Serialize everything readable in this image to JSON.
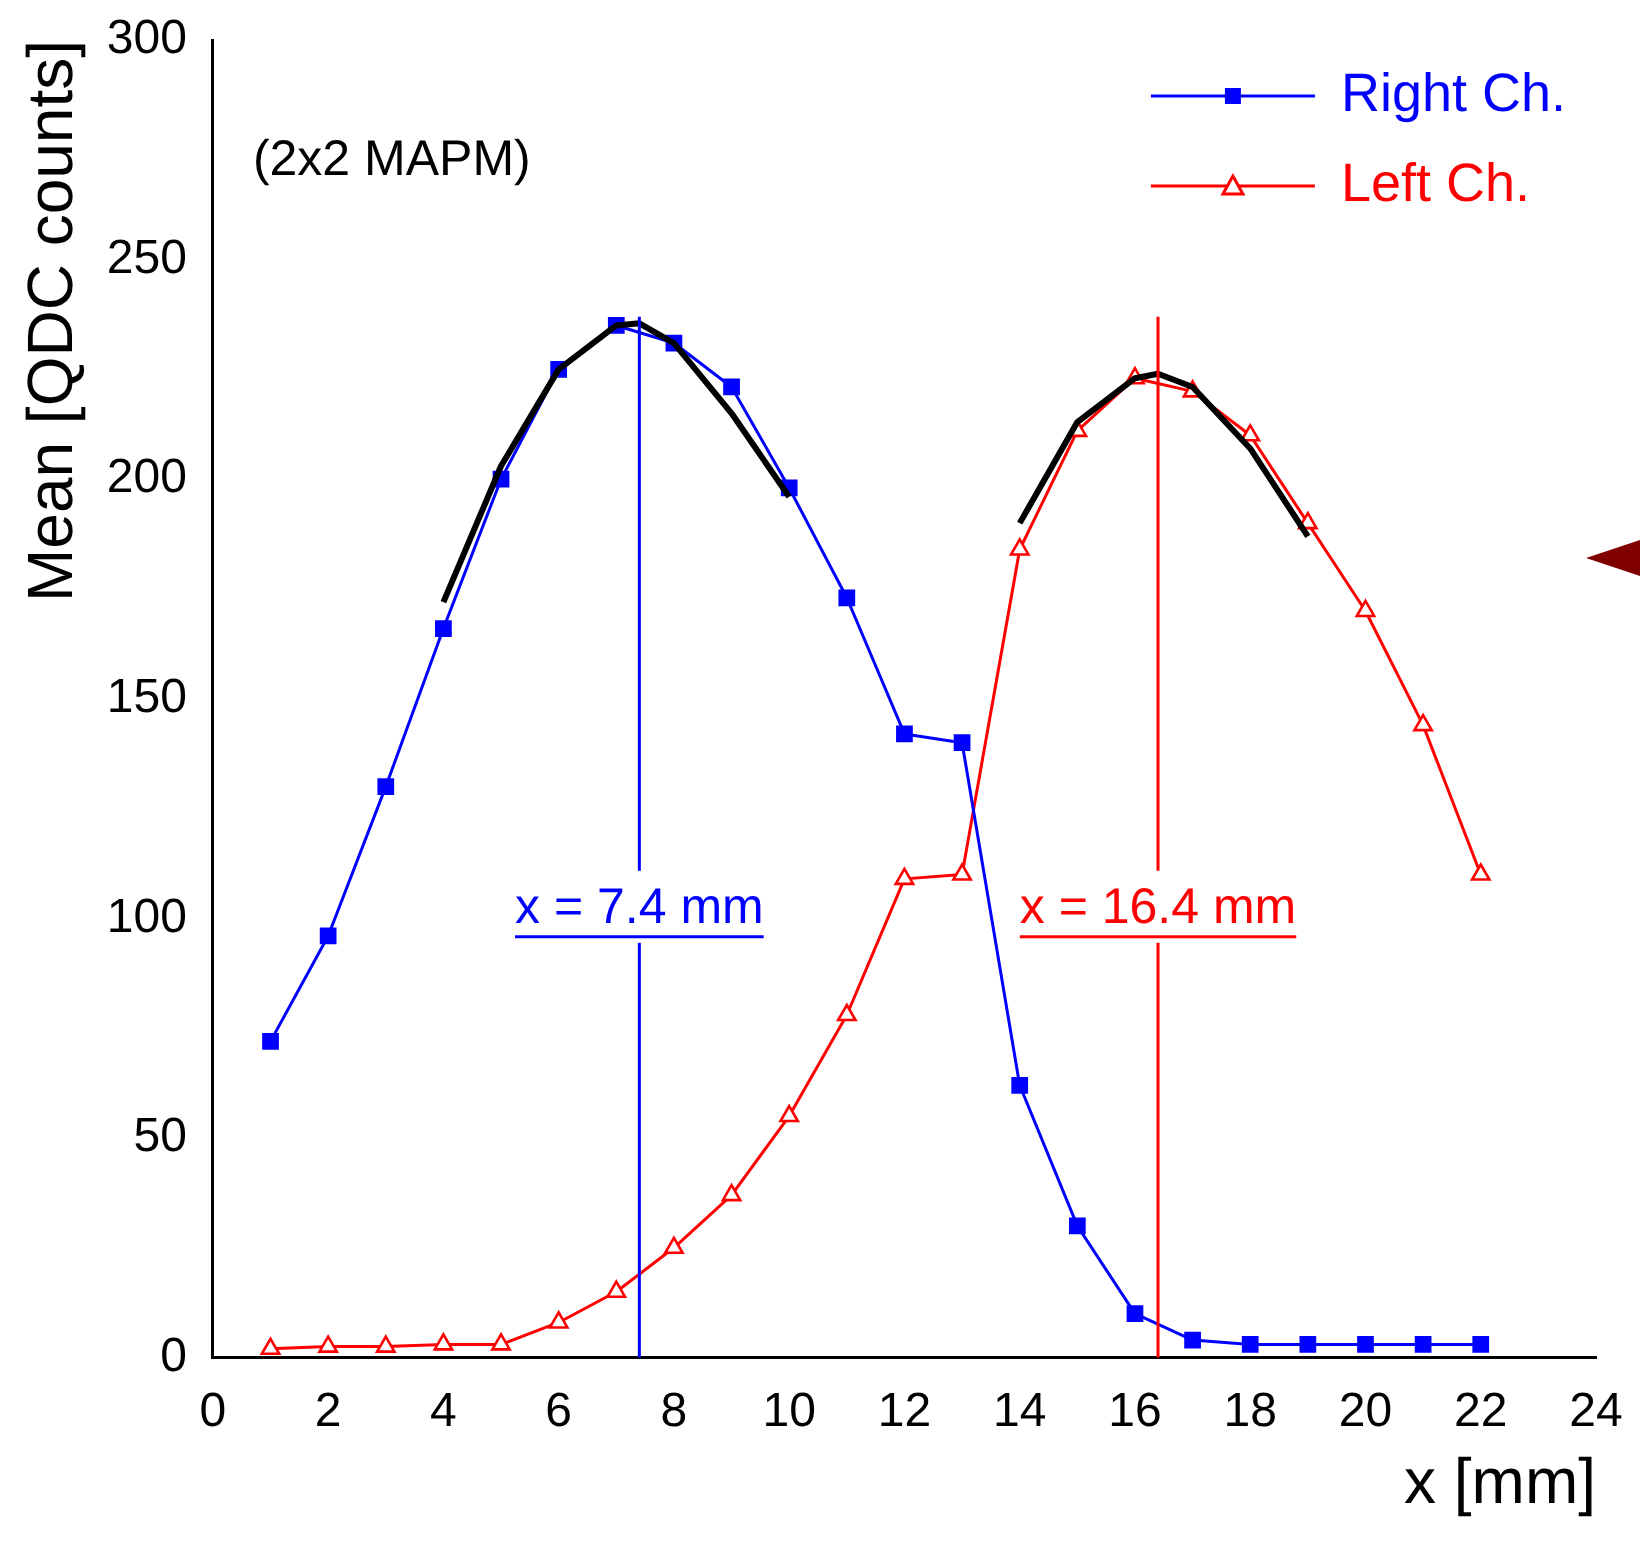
{
  "chart_data": {
    "type": "line",
    "xlabel": "x [mm]",
    "ylabel": "Mean [QDC counts]",
    "xlim": [
      0,
      24
    ],
    "xticks": [
      0,
      2,
      4,
      6,
      8,
      10,
      12,
      14,
      16,
      18,
      20,
      22,
      24
    ],
    "ylim": [
      0,
      300
    ],
    "yticks": [
      0,
      50,
      100,
      150,
      200,
      250,
      300
    ],
    "grid": false,
    "legend": "top right",
    "line_style": "solid",
    "series": [
      {
        "name": "Right Ch.",
        "color": "#0000ff",
        "marker": "square",
        "x": [
          1,
          2,
          3,
          4,
          5,
          6,
          7,
          8,
          9,
          10,
          11,
          12,
          13,
          14,
          15,
          16,
          17,
          18,
          19,
          20,
          21,
          22
        ],
        "values": [
          72,
          96,
          130,
          166,
          200,
          225,
          235,
          231,
          221,
          198,
          173,
          142,
          140,
          62,
          30,
          10,
          4,
          3,
          3,
          3,
          3,
          3
        ]
      },
      {
        "name": "Left Ch.",
        "color": "#ff0000",
        "marker": "triangle",
        "x": [
          1,
          2,
          3,
          4,
          5,
          6,
          7,
          8,
          9,
          10,
          11,
          12,
          13,
          14,
          15,
          16,
          17,
          18,
          19,
          20,
          21,
          22
        ],
        "values": [
          2,
          2.5,
          2.5,
          3,
          3,
          8,
          15,
          25,
          37,
          55,
          78,
          109,
          110,
          184,
          211,
          223,
          220,
          210,
          190,
          170,
          144,
          110
        ]
      },
      {
        "color": "#000000",
        "marker": "none",
        "x": [
          4,
          5,
          6,
          7,
          7.4,
          8,
          9,
          10
        ],
        "values": [
          172,
          203,
          225,
          235,
          235.5,
          231,
          215,
          196
        ]
      },
      {
        "color": "#000000",
        "marker": "none",
        "x": [
          14,
          15,
          16,
          16.4,
          17,
          18,
          19
        ],
        "values": [
          190,
          213,
          223,
          224,
          221,
          207,
          187
        ]
      }
    ],
    "ref_lines": [
      {
        "axis": "x",
        "value": 7.4,
        "label": "x = 7.4 mm",
        "color": "#0000ff"
      },
      {
        "axis": "x",
        "value": 16.4,
        "label": "x = 16.4 mm",
        "color": "#ff0000"
      }
    ],
    "annotations": [
      "(2x2 MAPM)"
    ]
  }
}
